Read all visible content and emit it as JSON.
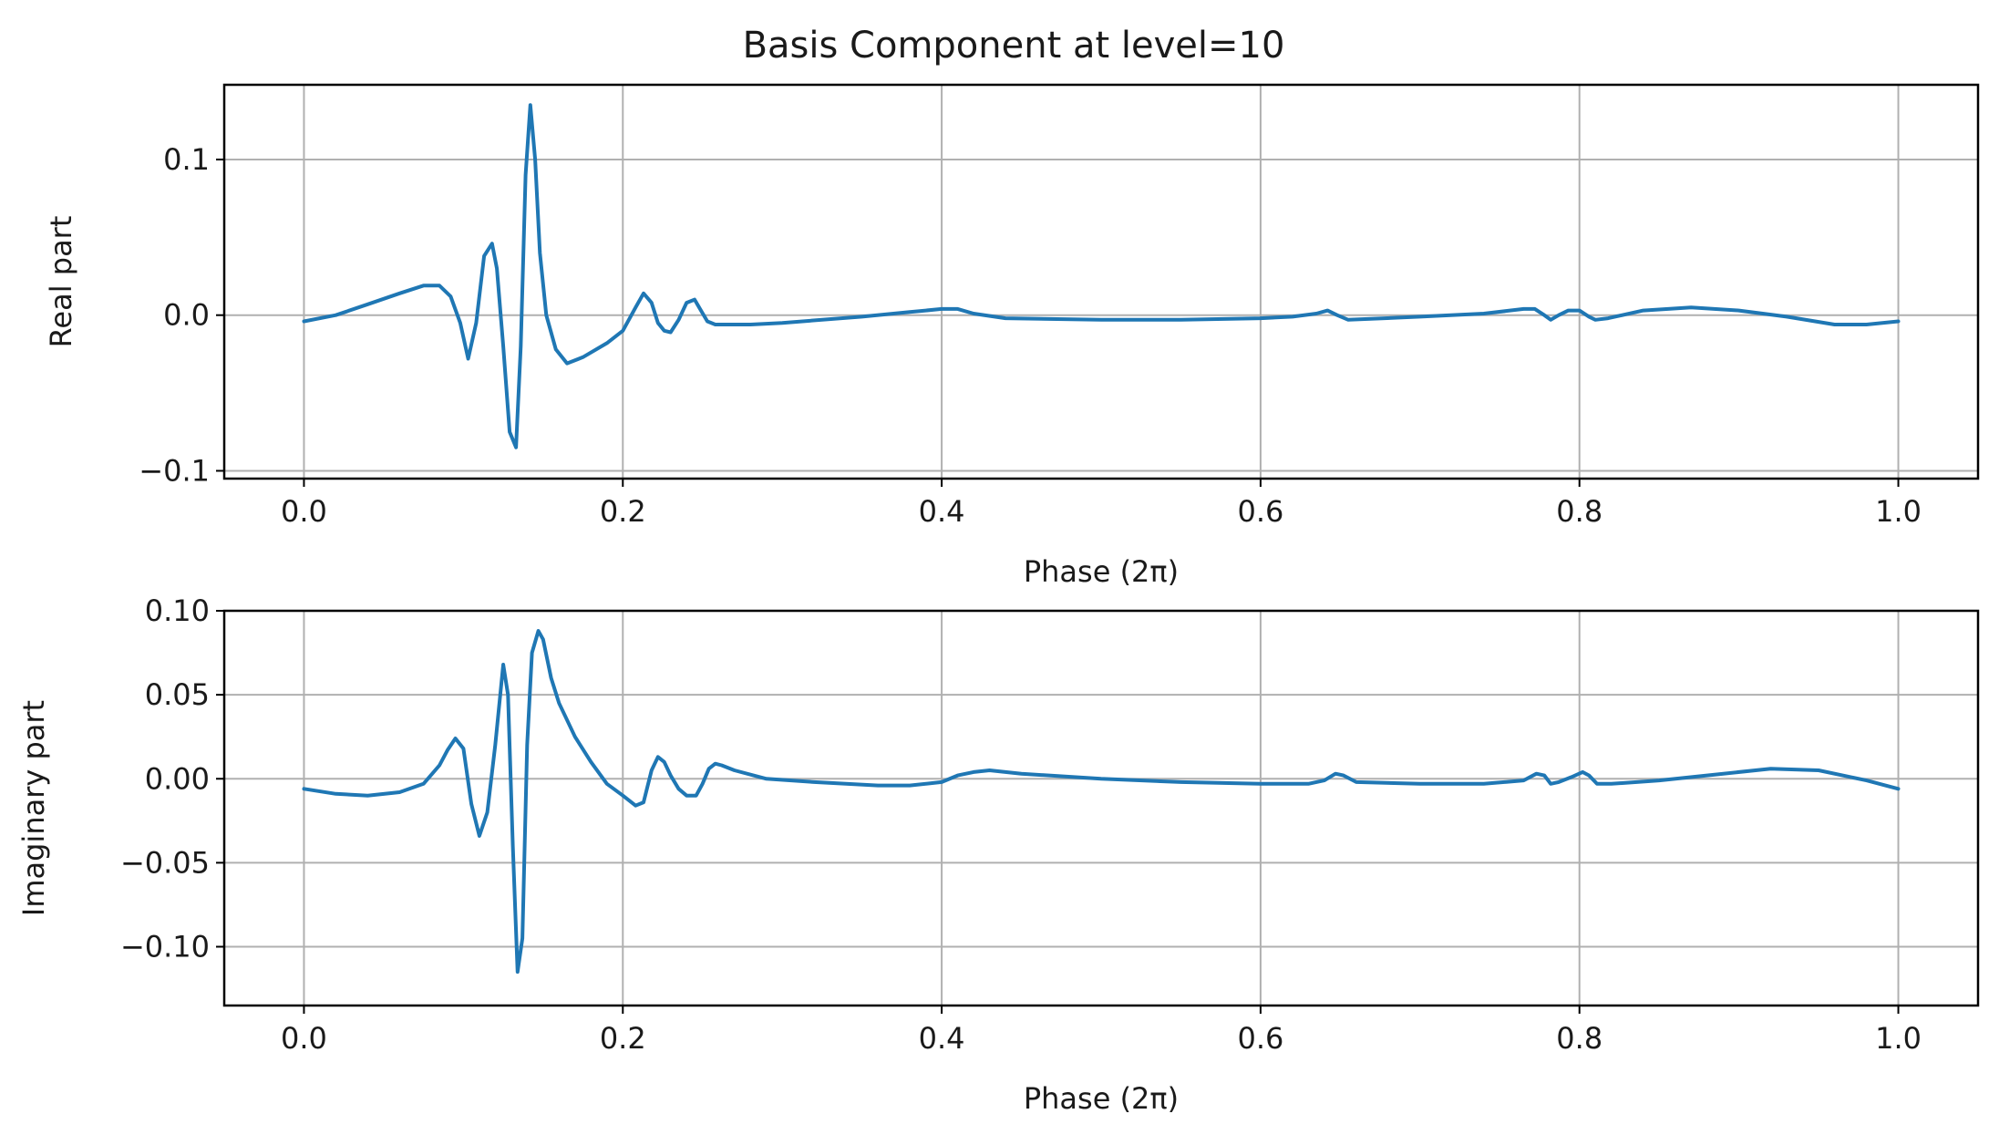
{
  "figure": {
    "title": "Basis Component at level=10"
  },
  "chart_data": [
    {
      "type": "line",
      "ylabel": "Real part",
      "xlabel": "Phase (2π)",
      "xlim": [
        -0.05,
        1.05
      ],
      "ylim": [
        -0.105,
        0.148
      ],
      "x_ticks": [
        0.0,
        0.2,
        0.4,
        0.6,
        0.8,
        1.0
      ],
      "x_tick_labels": [
        "0.0",
        "0.2",
        "0.4",
        "0.6",
        "0.8",
        "1.0"
      ],
      "y_ticks": [
        -0.1,
        0.0,
        0.1
      ],
      "y_tick_labels": [
        "−0.1",
        "0.0",
        "0.1"
      ],
      "grid": true,
      "color": "#1f77b4",
      "series": [
        {
          "x": [
            0.0,
            0.02,
            0.04,
            0.06,
            0.075,
            0.085,
            0.092,
            0.098,
            0.103,
            0.108,
            0.113,
            0.118,
            0.121,
            0.125,
            0.129,
            0.133,
            0.136,
            0.139,
            0.142,
            0.145,
            0.148,
            0.152,
            0.158,
            0.165,
            0.175,
            0.19,
            0.2,
            0.208,
            0.213,
            0.218,
            0.222,
            0.226,
            0.23,
            0.235,
            0.24,
            0.245,
            0.249,
            0.253,
            0.258,
            0.265,
            0.28,
            0.3,
            0.35,
            0.38,
            0.4,
            0.41,
            0.42,
            0.44,
            0.5,
            0.55,
            0.6,
            0.62,
            0.635,
            0.642,
            0.648,
            0.655,
            0.7,
            0.74,
            0.765,
            0.772,
            0.778,
            0.782,
            0.787,
            0.793,
            0.8,
            0.806,
            0.81,
            0.818,
            0.84,
            0.87,
            0.9,
            0.93,
            0.96,
            0.98,
            1.0
          ],
          "y": [
            -0.004,
            0.0,
            0.007,
            0.014,
            0.019,
            0.019,
            0.012,
            -0.005,
            -0.028,
            -0.005,
            0.038,
            0.046,
            0.03,
            -0.02,
            -0.075,
            -0.085,
            -0.02,
            0.09,
            0.135,
            0.1,
            0.04,
            0.0,
            -0.022,
            -0.031,
            -0.027,
            -0.018,
            -0.01,
            0.005,
            0.014,
            0.008,
            -0.005,
            -0.01,
            -0.011,
            -0.003,
            0.008,
            0.01,
            0.003,
            -0.004,
            -0.006,
            -0.006,
            -0.006,
            -0.005,
            -0.001,
            0.002,
            0.004,
            0.004,
            0.001,
            -0.002,
            -0.003,
            -0.003,
            -0.002,
            -0.001,
            0.001,
            0.003,
            0.0,
            -0.003,
            -0.001,
            0.001,
            0.004,
            0.004,
            0.0,
            -0.003,
            0.0,
            0.003,
            0.003,
            -0.001,
            -0.003,
            -0.002,
            0.003,
            0.005,
            0.003,
            -0.001,
            -0.006,
            -0.006,
            -0.004
          ]
        }
      ]
    },
    {
      "type": "line",
      "ylabel": "Imaginary part",
      "xlabel": "Phase (2π)",
      "xlim": [
        -0.05,
        1.05
      ],
      "ylim": [
        -0.135,
        0.1
      ],
      "x_ticks": [
        0.0,
        0.2,
        0.4,
        0.6,
        0.8,
        1.0
      ],
      "x_tick_labels": [
        "0.0",
        "0.2",
        "0.4",
        "0.6",
        "0.8",
        "1.0"
      ],
      "y_ticks": [
        -0.1,
        -0.05,
        0.0,
        0.05,
        0.1
      ],
      "y_tick_labels": [
        "−0.10",
        "−0.05",
        "0.00",
        "0.05",
        "0.10"
      ],
      "grid": true,
      "color": "#1f77b4",
      "series": [
        {
          "x": [
            0.0,
            0.02,
            0.04,
            0.06,
            0.075,
            0.085,
            0.09,
            0.095,
            0.1,
            0.105,
            0.11,
            0.115,
            0.12,
            0.125,
            0.128,
            0.131,
            0.134,
            0.137,
            0.14,
            0.143,
            0.147,
            0.15,
            0.155,
            0.16,
            0.17,
            0.18,
            0.19,
            0.2,
            0.208,
            0.213,
            0.218,
            0.222,
            0.226,
            0.23,
            0.235,
            0.24,
            0.246,
            0.25,
            0.254,
            0.258,
            0.262,
            0.27,
            0.29,
            0.32,
            0.36,
            0.38,
            0.4,
            0.41,
            0.42,
            0.43,
            0.45,
            0.5,
            0.55,
            0.6,
            0.63,
            0.64,
            0.647,
            0.652,
            0.66,
            0.7,
            0.74,
            0.765,
            0.773,
            0.778,
            0.782,
            0.787,
            0.795,
            0.802,
            0.806,
            0.811,
            0.82,
            0.85,
            0.88,
            0.92,
            0.95,
            0.98,
            1.0
          ],
          "y": [
            -0.006,
            -0.009,
            -0.01,
            -0.008,
            -0.003,
            0.008,
            0.017,
            0.024,
            0.018,
            -0.015,
            -0.034,
            -0.02,
            0.02,
            0.068,
            0.05,
            -0.04,
            -0.115,
            -0.095,
            0.02,
            0.075,
            0.088,
            0.083,
            0.06,
            0.045,
            0.025,
            0.01,
            -0.003,
            -0.01,
            -0.016,
            -0.014,
            0.005,
            0.013,
            0.01,
            0.002,
            -0.006,
            -0.01,
            -0.01,
            -0.003,
            0.006,
            0.009,
            0.008,
            0.005,
            0.0,
            -0.002,
            -0.004,
            -0.004,
            -0.002,
            0.002,
            0.004,
            0.005,
            0.003,
            0.0,
            -0.002,
            -0.003,
            -0.003,
            -0.001,
            0.003,
            0.002,
            -0.002,
            -0.003,
            -0.003,
            -0.001,
            0.003,
            0.002,
            -0.003,
            -0.002,
            0.001,
            0.004,
            0.002,
            -0.003,
            -0.003,
            -0.001,
            0.002,
            0.006,
            0.005,
            -0.001,
            -0.006
          ]
        }
      ]
    }
  ]
}
